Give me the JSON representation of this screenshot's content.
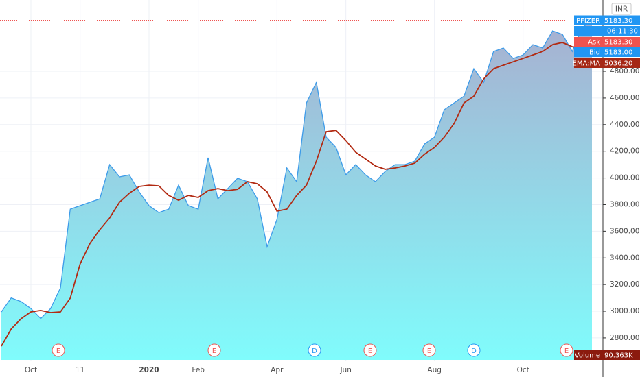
{
  "chart_data": {
    "type": "area",
    "currency": "INR",
    "categories": [
      null,
      null,
      null,
      "Oct",
      null,
      null,
      null,
      null,
      "11",
      null,
      null,
      null,
      null,
      null,
      null,
      "2020",
      null,
      null,
      null,
      null,
      "Feb",
      null,
      null,
      null,
      null,
      null,
      null,
      null,
      "Apr",
      null,
      null,
      null,
      null,
      null,
      null,
      "Jun",
      null,
      null,
      null,
      null,
      null,
      null,
      null,
      null,
      "Aug",
      null,
      null,
      null,
      null,
      null,
      null,
      null,
      null,
      "Oct",
      null,
      null,
      null,
      null,
      null,
      null,
      null
    ],
    "series": [
      {
        "name": "PFIZER",
        "color": "#3d9be9",
        "values": [
          2995,
          3100,
          3072,
          3020,
          2945,
          3020,
          3175,
          3766,
          3792,
          3818,
          3843,
          4100,
          4008,
          4023,
          3895,
          3792,
          3740,
          3766,
          3946,
          3792,
          3766,
          4152,
          3843,
          3920,
          3998,
          3972,
          3843,
          3484,
          3689,
          4075,
          3972,
          4563,
          4717,
          4306,
          4229,
          4023,
          4100,
          4023,
          3972,
          4049,
          4100,
          4100,
          4126,
          4255,
          4306,
          4512,
          4563,
          4614,
          4820,
          4717,
          4949,
          4975,
          4897,
          4923,
          5000,
          4975,
          5103,
          5077,
          4949,
          5128,
          5183.3
        ]
      },
      {
        "name": "EMA:MA",
        "color": "#b22a12",
        "values": [
          2738,
          2867,
          2944,
          2995,
          3006,
          2990,
          2995,
          3098,
          3355,
          3509,
          3612,
          3700,
          3818,
          3885,
          3936,
          3946,
          3941,
          3869,
          3833,
          3869,
          3854,
          3905,
          3920,
          3905,
          3915,
          3972,
          3956,
          3895,
          3751,
          3766,
          3869,
          3946,
          4126,
          4347,
          4357,
          4280,
          4193,
          4142,
          4090,
          4065,
          4075,
          4090,
          4111,
          4178,
          4229,
          4306,
          4409,
          4563,
          4614,
          4743,
          4820,
          4846,
          4871,
          4897,
          4923,
          4949,
          5000,
          5016,
          4985,
          4975,
          5036.2
        ]
      }
    ],
    "last_labels": [
      "5183.30",
      "5036.20"
    ],
    "countdown": "06:11:30",
    "quotes": [
      {
        "name": "Ask",
        "price": "5183.30"
      },
      {
        "name": "Bid",
        "price": "5183.00"
      }
    ],
    "volume": {
      "name": "Volume",
      "value": "90.363K"
    },
    "events": [
      "E",
      "E",
      "D",
      "E",
      "E",
      "D",
      "E"
    ],
    "ylim": [
      2635,
      5335
    ],
    "yticks": [
      {
        "value": 2800,
        "label": "2800.00"
      },
      {
        "value": 3000,
        "label": "3000.00"
      },
      {
        "value": 3200,
        "label": "3200.00"
      },
      {
        "value": 3400,
        "label": "3400.00"
      },
      {
        "value": 3600,
        "label": "3600.00"
      },
      {
        "value": 3800,
        "label": "3800.00"
      },
      {
        "value": 4000,
        "label": "4000.00"
      },
      {
        "value": 4200,
        "label": "4200.00"
      },
      {
        "value": 4400,
        "label": "4400.00"
      },
      {
        "value": 4600,
        "label": "4600.00"
      },
      {
        "value": 4800,
        "label": "4800.00"
      }
    ],
    "grid": true
  }
}
